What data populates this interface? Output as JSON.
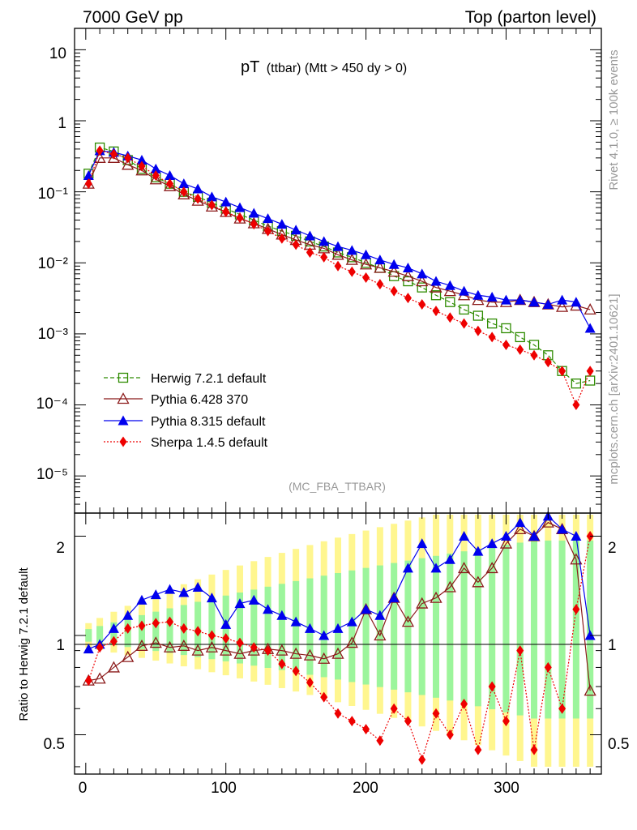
{
  "header": {
    "left": "7000 GeV pp",
    "right": "Top (parton level)"
  },
  "side_labels": {
    "rivet": "Rivet 4.1.0, ≥ 100k events",
    "mcplots": "mcplots.cern.ch [arXiv:2401.10621]"
  },
  "chart_data": {
    "type": "line",
    "title_main": "pT",
    "title_sub": "(ttbar) (Mtt > 450 dy > 0)",
    "analysis": "(MC_FBA_TTBAR)",
    "xlabel": "",
    "ylabel_main": "",
    "ylabel_ratio": "Ratio to Herwig 7.2.1 default",
    "xlim": [
      -8,
      368
    ],
    "ylim_main": [
      3e-06,
      20
    ],
    "ylog_main": true,
    "ylim_ratio": [
      0.38,
      2.35
    ],
    "ylog_ratio": true,
    "xticks": [
      "0",
      "100",
      "200",
      "300"
    ],
    "yticks_main": [
      "10",
      "1",
      "10⁻¹",
      "10⁻²",
      "10⁻³",
      "10⁻⁴",
      "10⁻⁵"
    ],
    "yticks_ratio": [
      "2",
      "1",
      "0.5"
    ],
    "legend_position": "bottom-left",
    "series": [
      {
        "name": "Herwig 7.2.1 default",
        "color": "#2e8b00",
        "marker": "open-square",
        "line": "dashed",
        "x": [
          2,
          10,
          20,
          30,
          40,
          50,
          60,
          70,
          80,
          90,
          100,
          110,
          120,
          130,
          140,
          150,
          160,
          170,
          180,
          190,
          200,
          210,
          220,
          230,
          240,
          250,
          260,
          270,
          280,
          290,
          300,
          310,
          320,
          330,
          340,
          350,
          360
        ],
        "y": [
          0.18,
          0.42,
          0.37,
          0.28,
          0.21,
          0.16,
          0.13,
          0.1,
          0.085,
          0.07,
          0.058,
          0.048,
          0.04,
          0.033,
          0.028,
          0.024,
          0.02,
          0.017,
          0.014,
          0.012,
          0.01,
          0.0085,
          0.0065,
          0.0055,
          0.0045,
          0.0035,
          0.0028,
          0.0022,
          0.0018,
          0.0014,
          0.0012,
          0.0009,
          0.0007,
          0.0005,
          0.0003,
          0.0002,
          0.00022
        ]
      },
      {
        "name": "Pythia 6.428 370",
        "color": "#8b1a1a",
        "marker": "open-triangle",
        "line": "solid",
        "x": [
          2,
          10,
          20,
          30,
          40,
          50,
          60,
          70,
          80,
          90,
          100,
          110,
          120,
          130,
          140,
          150,
          160,
          170,
          180,
          190,
          200,
          210,
          220,
          230,
          240,
          250,
          260,
          270,
          280,
          290,
          300,
          310,
          320,
          330,
          340,
          350,
          360
        ],
        "y": [
          0.13,
          0.3,
          0.3,
          0.24,
          0.2,
          0.15,
          0.12,
          0.092,
          0.075,
          0.062,
          0.052,
          0.042,
          0.036,
          0.03,
          0.025,
          0.021,
          0.018,
          0.016,
          0.013,
          0.011,
          0.0095,
          0.0085,
          0.0075,
          0.0065,
          0.0055,
          0.0045,
          0.004,
          0.0035,
          0.003,
          0.0028,
          0.0028,
          0.003,
          0.0028,
          0.0026,
          0.0024,
          0.0025,
          0.0022
        ]
      },
      {
        "name": "Pythia 8.315 default",
        "color": "#0000ee",
        "marker": "filled-triangle",
        "line": "solid",
        "x": [
          2,
          10,
          20,
          30,
          40,
          50,
          60,
          70,
          80,
          90,
          100,
          110,
          120,
          130,
          140,
          150,
          160,
          170,
          180,
          190,
          200,
          210,
          220,
          230,
          240,
          250,
          260,
          270,
          280,
          290,
          300,
          310,
          320,
          330,
          340,
          350,
          360
        ],
        "y": [
          0.17,
          0.38,
          0.36,
          0.32,
          0.28,
          0.21,
          0.17,
          0.13,
          0.11,
          0.085,
          0.072,
          0.06,
          0.05,
          0.042,
          0.035,
          0.029,
          0.024,
          0.02,
          0.017,
          0.015,
          0.013,
          0.011,
          0.0095,
          0.0085,
          0.007,
          0.0055,
          0.0048,
          0.004,
          0.0035,
          0.0033,
          0.003,
          0.003,
          0.0028,
          0.0026,
          0.003,
          0.0028,
          0.0012
        ]
      },
      {
        "name": "Sherpa 1.4.5 default",
        "color": "#ee0000",
        "marker": "filled-diamond",
        "line": "dotted",
        "x": [
          2,
          10,
          20,
          30,
          40,
          50,
          60,
          70,
          80,
          90,
          100,
          110,
          120,
          130,
          140,
          150,
          160,
          170,
          180,
          190,
          200,
          210,
          220,
          230,
          240,
          250,
          260,
          270,
          280,
          290,
          300,
          310,
          320,
          330,
          340,
          350,
          360
        ],
        "y": [
          0.13,
          0.38,
          0.34,
          0.3,
          0.23,
          0.17,
          0.13,
          0.1,
          0.08,
          0.065,
          0.052,
          0.043,
          0.035,
          0.028,
          0.022,
          0.018,
          0.014,
          0.012,
          0.009,
          0.0075,
          0.0062,
          0.005,
          0.004,
          0.0032,
          0.0026,
          0.0021,
          0.0017,
          0.0014,
          0.0011,
          0.0009,
          0.0007,
          0.0006,
          0.0005,
          0.0004,
          0.0003,
          0.0001,
          0.0003
        ]
      }
    ],
    "ratio_series": [
      {
        "name": "Pythia 6.428 370",
        "color": "#8b1a1a",
        "marker": "open-triangle",
        "line": "solid",
        "x": [
          2,
          10,
          20,
          30,
          40,
          50,
          60,
          70,
          80,
          90,
          100,
          110,
          120,
          130,
          140,
          150,
          160,
          170,
          180,
          190,
          200,
          210,
          220,
          230,
          240,
          250,
          260,
          270,
          280,
          290,
          300,
          310,
          320,
          330,
          340,
          350,
          360
        ],
        "y": [
          0.73,
          0.74,
          0.8,
          0.86,
          0.93,
          0.95,
          0.92,
          0.93,
          0.9,
          0.92,
          0.9,
          0.88,
          0.9,
          0.91,
          0.9,
          0.88,
          0.87,
          0.85,
          0.88,
          0.95,
          1.2,
          1.0,
          1.3,
          1.1,
          1.25,
          1.3,
          1.4,
          1.6,
          1.45,
          1.6,
          1.9,
          2.1,
          2.0,
          2.2,
          2.1,
          1.7,
          0.68
        ]
      },
      {
        "name": "Pythia 8.315 default",
        "color": "#0000ee",
        "marker": "filled-triangle",
        "line": "solid",
        "x": [
          2,
          10,
          20,
          30,
          40,
          50,
          60,
          70,
          80,
          90,
          100,
          110,
          120,
          130,
          140,
          150,
          160,
          170,
          180,
          190,
          200,
          210,
          220,
          230,
          240,
          250,
          260,
          270,
          280,
          290,
          300,
          310,
          320,
          330,
          340,
          350,
          360
        ],
        "y": [
          0.91,
          0.94,
          1.05,
          1.15,
          1.28,
          1.33,
          1.38,
          1.35,
          1.4,
          1.3,
          1.08,
          1.25,
          1.28,
          1.2,
          1.15,
          1.1,
          1.05,
          1.0,
          1.05,
          1.1,
          1.2,
          1.15,
          1.3,
          1.6,
          1.9,
          1.6,
          1.7,
          2.0,
          1.8,
          1.9,
          2.0,
          2.2,
          2.0,
          2.3,
          2.1,
          2.0,
          1.0
        ]
      },
      {
        "name": "Sherpa 1.4.5 default",
        "color": "#ee0000",
        "marker": "filled-diamond",
        "line": "dotted",
        "x": [
          2,
          10,
          20,
          30,
          40,
          50,
          60,
          70,
          80,
          90,
          100,
          110,
          120,
          130,
          140,
          150,
          160,
          170,
          180,
          190,
          200,
          210,
          220,
          230,
          240,
          250,
          260,
          270,
          280,
          290,
          300,
          310,
          320,
          330,
          340,
          350,
          360
        ],
        "y": [
          0.73,
          0.92,
          0.96,
          1.05,
          1.07,
          1.09,
          1.1,
          1.05,
          1.03,
          1.0,
          0.98,
          0.95,
          0.92,
          0.9,
          0.82,
          0.78,
          0.72,
          0.65,
          0.58,
          0.55,
          0.52,
          0.48,
          0.6,
          0.55,
          0.42,
          0.58,
          0.5,
          0.62,
          0.45,
          0.7,
          0.55,
          0.9,
          0.45,
          0.8,
          0.6,
          1.2,
          2.0
        ]
      }
    ]
  }
}
